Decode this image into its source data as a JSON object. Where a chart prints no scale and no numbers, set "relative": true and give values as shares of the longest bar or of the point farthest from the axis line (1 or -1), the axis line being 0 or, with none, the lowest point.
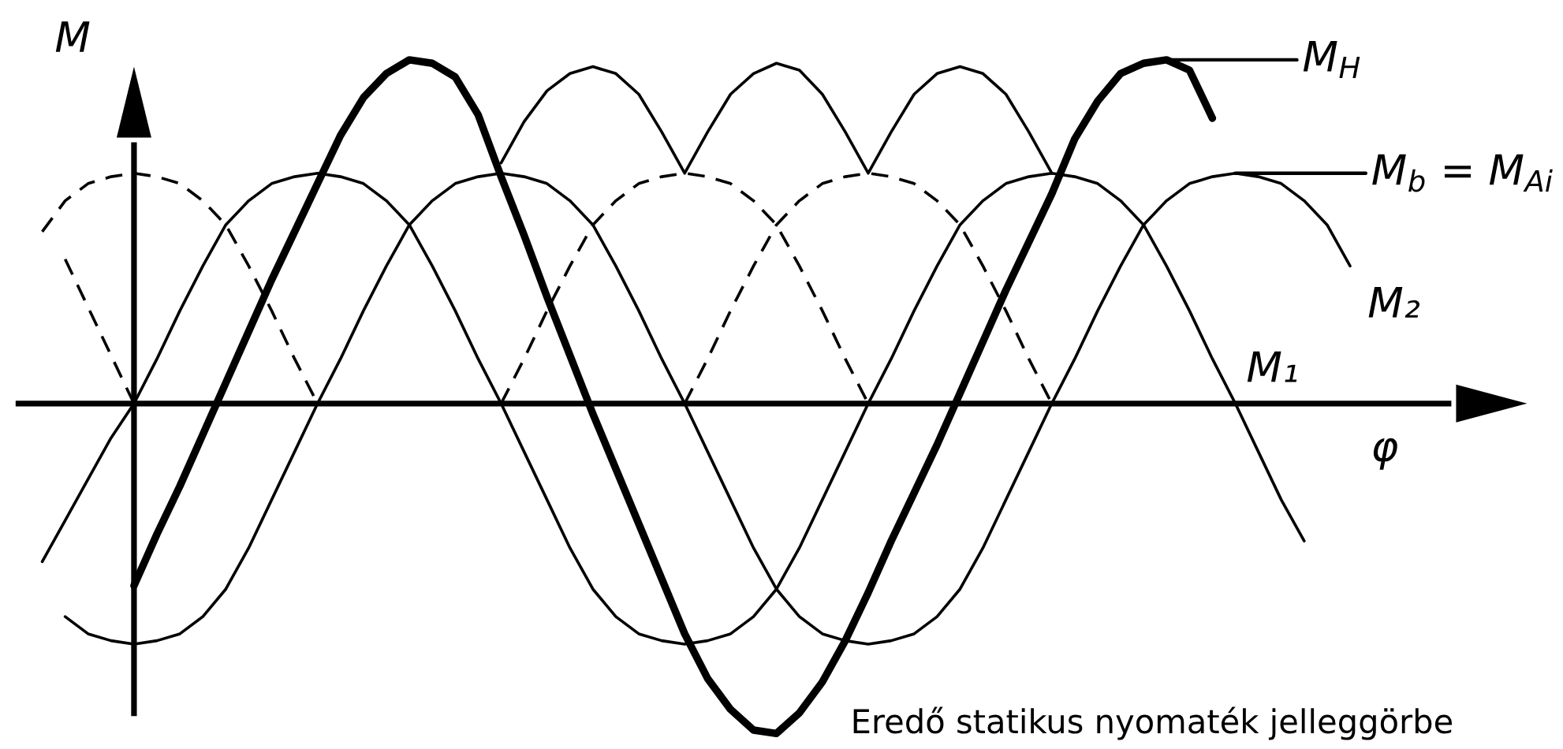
{
  "chart_data": {
    "type": "line",
    "relative": true,
    "categories": [
      null,
      null,
      null,
      null,
      null,
      null,
      null,
      null,
      null,
      null,
      null,
      null,
      null,
      null,
      null,
      null,
      null,
      null,
      null,
      null,
      null,
      null,
      null,
      null,
      null,
      null,
      null,
      null,
      null,
      null,
      null,
      null,
      null,
      null,
      null,
      null,
      null,
      null,
      null,
      null,
      null,
      null,
      null,
      null,
      null,
      null,
      null,
      null,
      null,
      null,
      null,
      null,
      null,
      null,
      null,
      null,
      null,
      null,
      null,
      null
    ],
    "xlabel": "φ",
    "ylabel": "M",
    "series": [
      {
        "color": "#000000",
        "values": [
          null,
          null,
          null,
          null,
          null,
          -0.53,
          -0.38,
          -0.24,
          -0.09,
          0.06,
          0.21,
          0.36,
          0.5,
          0.64,
          0.78,
          0.89,
          0.96,
          1.0,
          0.99,
          0.95,
          0.84,
          0.66,
          0.49,
          0.31,
          0.14,
          -0.03,
          -0.19,
          -0.35,
          -0.51,
          -0.67,
          -0.8,
          -0.89,
          -0.95,
          -0.96,
          -0.9,
          -0.81,
          -0.69,
          -0.55,
          -0.4,
          -0.26,
          -0.12,
          0.03,
          0.18,
          0.33,
          0.47,
          0.61,
          0.77,
          0.88,
          0.96,
          0.99,
          1.0,
          0.97,
          0.83,
          null,
          null,
          null,
          null,
          null,
          null,
          null
        ]
      },
      {
        "name": "M₁",
        "color": "#000000",
        "values": [
          null,
          -0.46,
          -0.34,
          -0.22,
          -0.1,
          0,
          0.13,
          0.27,
          0.4,
          0.52,
          0.59,
          0.64,
          0.66,
          0.67,
          0.66,
          0.64,
          0.59,
          0.52,
          0.4,
          0.27,
          0.13,
          0,
          -0.14,
          -0.28,
          -0.42,
          -0.54,
          -0.62,
          -0.67,
          -0.69,
          -0.7,
          -0.69,
          -0.67,
          -0.62,
          -0.54,
          -0.42,
          -0.28,
          -0.14,
          0,
          0.13,
          0.27,
          0.4,
          0.52,
          0.59,
          0.64,
          0.66,
          0.67,
          0.66,
          0.64,
          0.59,
          0.52,
          0.4,
          0.27,
          0.13,
          0,
          -0.14,
          -0.28,
          -0.4,
          null,
          null,
          null
        ]
      },
      {
        "name": "M₂",
        "color": "#000000",
        "values": [
          null,
          null,
          -0.62,
          -0.67,
          -0.69,
          -0.7,
          -0.69,
          -0.67,
          -0.62,
          -0.54,
          -0.42,
          -0.28,
          -0.14,
          0,
          0.13,
          0.27,
          0.4,
          0.52,
          0.59,
          0.64,
          0.66,
          0.67,
          0.66,
          0.64,
          0.59,
          0.52,
          0.4,
          0.27,
          0.13,
          0,
          -0.14,
          -0.28,
          -0.42,
          -0.54,
          -0.62,
          -0.67,
          -0.69,
          -0.7,
          -0.69,
          -0.67,
          -0.62,
          -0.54,
          -0.42,
          -0.28,
          -0.14,
          0,
          0.13,
          0.27,
          0.4,
          0.52,
          0.59,
          0.64,
          0.66,
          0.67,
          0.66,
          0.64,
          0.59,
          0.52,
          0.4,
          null
        ]
      },
      {
        "color": "#000000",
        "line_style": "dashed",
        "values": [
          null,
          null,
          0.42,
          0.28,
          0.14,
          0,
          null,
          null,
          null,
          null,
          null,
          null,
          null,
          null,
          null,
          null,
          null,
          null,
          null,
          null,
          null,
          0,
          0.13,
          0.27,
          0.4,
          0.52,
          0.59,
          0.64,
          0.66,
          0.67,
          0.66,
          0.64,
          0.59,
          0.52,
          0.4,
          0.27,
          0.13,
          0,
          null,
          null,
          null,
          null,
          null,
          null,
          null,
          null,
          null,
          null,
          null,
          null,
          null,
          null,
          null,
          null,
          null,
          null,
          null,
          null,
          null,
          null
        ]
      },
      {
        "color": "#000000",
        "line_style": "dashed",
        "values": [
          null,
          0.5,
          0.59,
          0.64,
          0.66,
          0.67,
          0.66,
          0.64,
          0.59,
          0.52,
          0.4,
          0.27,
          0.13,
          0,
          null,
          null,
          null,
          null,
          null,
          null,
          null,
          null,
          null,
          null,
          null,
          null,
          null,
          null,
          null,
          0,
          0.13,
          0.27,
          0.4,
          0.52,
          0.59,
          0.64,
          0.66,
          0.67,
          0.66,
          0.64,
          0.59,
          0.52,
          0.4,
          0.27,
          0.13,
          0,
          null,
          null,
          null,
          null,
          null,
          null,
          null,
          null,
          null,
          null,
          null,
          null,
          null,
          null
        ]
      },
      {
        "color": "#000000",
        "values": [
          null,
          null,
          null,
          null,
          null,
          null,
          null,
          null,
          null,
          null,
          null,
          null,
          null,
          null,
          null,
          null,
          null,
          null,
          null,
          null,
          null,
          0.7,
          0.82,
          0.91,
          0.96,
          0.98,
          0.96,
          0.9,
          0.79,
          0.67,
          0.79,
          0.9,
          0.96,
          0.99,
          0.97,
          0.9,
          0.79,
          0.67,
          0.79,
          0.9,
          0.96,
          0.98,
          0.96,
          0.9,
          0.79,
          0.67,
          null,
          null,
          null,
          null,
          null,
          null,
          null,
          null,
          null,
          null,
          null,
          null,
          null,
          null
        ]
      }
    ],
    "annotations": [
      "M$_{H}$",
      "M$_{b}$ = M$_{Ai}$",
      "Eredő statikus nyomaték jelleggörbe"
    ]
  }
}
